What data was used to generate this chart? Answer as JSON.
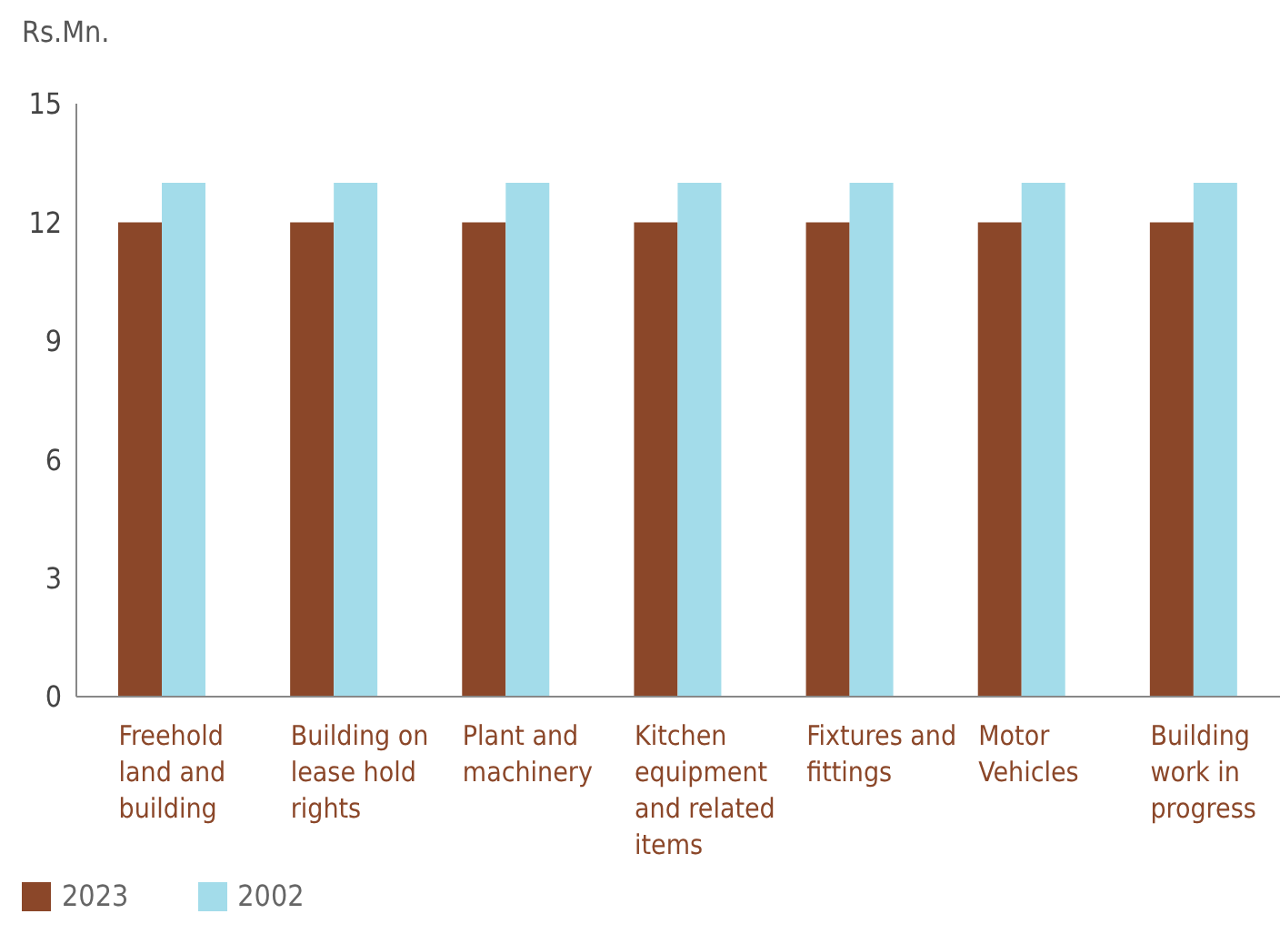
{
  "chart_data": {
    "type": "bar",
    "ylabel": "Rs.Mn.",
    "categories": [
      "Freehold land and building",
      "Building on lease hold rights",
      "Plant and machinery",
      "Kitchen equipment and related items",
      "Fixtures and fittings",
      "Motor Vehicles",
      "Building work in progress"
    ],
    "series": [
      {
        "name": "2023",
        "color": "#8b4729",
        "values": [
          12,
          12,
          12,
          12,
          12,
          12,
          12
        ]
      },
      {
        "name": "2002",
        "color": "#a3dcea",
        "values": [
          13,
          13,
          13,
          13,
          13,
          13,
          13
        ]
      }
    ],
    "ylim": [
      0,
      15
    ],
    "yticks": [
      0,
      3,
      6,
      9,
      12,
      15
    ],
    "grid": false,
    "legend": "bottom left"
  }
}
